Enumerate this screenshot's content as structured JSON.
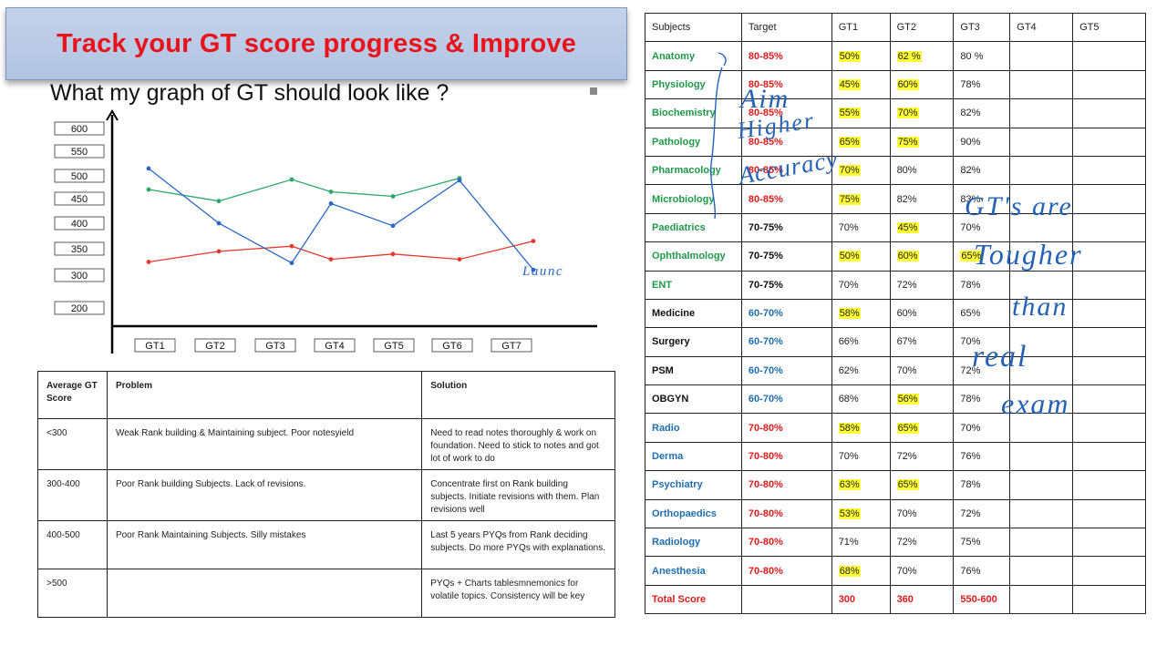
{
  "banner": {
    "title": "Track your GT score progress & Improve"
  },
  "graph": {
    "title": "What my graph of GT should look like ?",
    "annotation": "Launc",
    "chart_data": {
      "type": "line",
      "title": "What my graph of GT should look like ?",
      "categories": [
        "GT1",
        "GT2",
        "GT3",
        "GT4",
        "GT5",
        "GT6",
        "GT7"
      ],
      "y_tick_labels": [
        "600",
        "550",
        "500",
        "450",
        "400",
        "350",
        "300",
        "200"
      ],
      "ylim": [
        200,
        600
      ],
      "grid": false,
      "series": [
        {
          "color": "#e8392f",
          "values": [
            325,
            345,
            355,
            330,
            340,
            330,
            365
          ]
        },
        {
          "color": "#2aa86a",
          "values": [
            470,
            445,
            492,
            465,
            455,
            495,
            null
          ]
        },
        {
          "color": "#2868c6",
          "values": [
            515,
            400,
            323,
            440,
            395,
            490,
            310
          ]
        }
      ]
    }
  },
  "problem_table": {
    "headers": [
      "Average GT Score",
      "Problem",
      "Solution"
    ],
    "rows": [
      {
        "score": "<300",
        "problem": "Weak Rank building & Maintaining subject. Poor notesyield",
        "solution": "Need to read notes thoroughly & work on foundation. Need to stick to notes and got lot of work to do"
      },
      {
        "score": "300-400",
        "problem": "Poor Rank building Subjects. Lack of revisions.",
        "solution": "Concentrate first on Rank building subjects. Initiate revisions with them. Plan revisions well"
      },
      {
        "score": "400-500",
        "problem": "Poor Rank Maintaining Subjects. Silly mistakes",
        "solution": "Last 5 years PYQs from Rank deciding subjects. Do more PYQs with explanations."
      },
      {
        "score": ">500",
        "problem": "",
        "solution": "PYQs + Charts tablesmnemonics for volatile topics. Consistency will be key"
      }
    ]
  },
  "subject_table": {
    "headers": [
      "Subjects",
      "Target",
      "GT1",
      "GT2",
      "GT3",
      "GT4",
      "GT5"
    ],
    "colors": {
      "green": "#1f9a49",
      "blue": "#1f6fb0",
      "red": "#e21b1b",
      "black": "#111111",
      "highlight": "#ffff33"
    },
    "rows": [
      {
        "subject": "Anatomy",
        "target": "80-85%",
        "gt1": "50%",
        "gt2": "62 %",
        "gt3": "80 %"
      },
      {
        "subject": "Physiology",
        "target": "80-85%",
        "gt1": "45%",
        "gt2": "60%",
        "gt3": "78%"
      },
      {
        "subject": "Biochemistry",
        "target": "80-85%",
        "gt1": "55%",
        "gt2": "70%",
        "gt3": "82%"
      },
      {
        "subject": "Pathology",
        "target": "80-85%",
        "gt1": "65%",
        "gt2": "75%",
        "gt3": "90%"
      },
      {
        "subject": "Pharmacology",
        "target": "80-85%",
        "gt1": "70%",
        "gt2": "80%",
        "gt3": "82%"
      },
      {
        "subject": "Microbiology",
        "target": "80-85%",
        "gt1": "75%",
        "gt2": "82%",
        "gt3": "83%"
      },
      {
        "subject": "Paediatrics",
        "target": "70-75%",
        "gt1": "70%",
        "gt2": "45%",
        "gt3": "70%"
      },
      {
        "subject": "Ophthalmology",
        "target": "70-75%",
        "gt1": "50%",
        "gt2": "60%",
        "gt3": "65%"
      },
      {
        "subject": "ENT",
        "target": "70-75%",
        "gt1": "70%",
        "gt2": "72%",
        "gt3": "78%"
      },
      {
        "subject": "Medicine",
        "target": "60-70%",
        "gt1": "58%",
        "gt2": "60%",
        "gt3": "65%"
      },
      {
        "subject": "Surgery",
        "target": "60-70%",
        "gt1": "66%",
        "gt2": "67%",
        "gt3": "70%"
      },
      {
        "subject": "PSM",
        "target": "60-70%",
        "gt1": "62%",
        "gt2": "70%",
        "gt3": "72%"
      },
      {
        "subject": "OBGYN",
        "target": "60-70%",
        "gt1": "68%",
        "gt2": "56%",
        "gt3": "78%"
      },
      {
        "subject": "Radio",
        "target": "70-80%",
        "gt1": "58%",
        "gt2": "65%",
        "gt3": "70%"
      },
      {
        "subject": "Derma",
        "target": "70-80%",
        "gt1": "70%",
        "gt2": "72%",
        "gt3": "76%"
      },
      {
        "subject": "Psychiatry",
        "target": "70-80%",
        "gt1": "63%",
        "gt2": "65%",
        "gt3": "78%"
      },
      {
        "subject": "Orthopaedics",
        "target": "70-80%",
        "gt1": "53%",
        "gt2": "70%",
        "gt3": "72%"
      },
      {
        "subject": "Radiology",
        "target": "70-80%",
        "gt1": "71%",
        "gt2": "72%",
        "gt3": "75%"
      },
      {
        "subject": "Anesthesia",
        "target": "70-80%",
        "gt1": "68%",
        "gt2": "70%",
        "gt3": "76%"
      }
    ],
    "total": {
      "label": "Total Score",
      "gt1": "300",
      "gt2": "360",
      "gt3": "550-600"
    }
  },
  "handwriting": {
    "left_note": [
      "Aim",
      "Higher",
      "Accuracy"
    ],
    "right_note": [
      "GT's are",
      "Tougher",
      "than",
      "real",
      "exam"
    ]
  }
}
